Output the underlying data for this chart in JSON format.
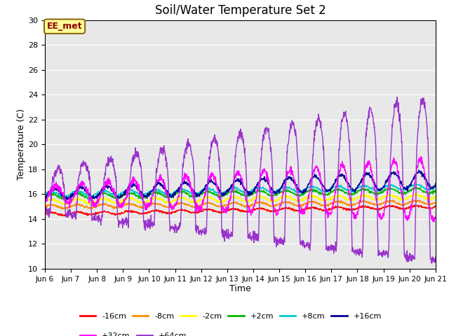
{
  "title": "Soil/Water Temperature Set 2",
  "xlabel": "Time",
  "ylabel": "Temperature (C)",
  "ylim": [
    10,
    30
  ],
  "xlim": [
    0,
    15
  ],
  "plot_bg_color": "#e8e8e8",
  "x_tick_labels": [
    "Jun 6",
    "Jun 7",
    "Jun 8",
    "Jun 9",
    "Jun 10",
    "Jun 11",
    "Jun 12",
    "Jun 13",
    "Jun 14",
    "Jun 15",
    "Jun 16",
    "Jun 17",
    "Jun 18",
    "Jun 19",
    "Jun 20",
    "Jun 21"
  ],
  "annotation_text": "EE_met",
  "annotation_color": "#8B0000",
  "annotation_bg": "#FFFF99",
  "annotation_edge": "#8B6914",
  "series": {
    "-16cm": {
      "color": "#FF0000"
    },
    "-8cm": {
      "color": "#FF8C00"
    },
    "-2cm": {
      "color": "#FFFF00"
    },
    "+2cm": {
      "color": "#00BB00"
    },
    "+8cm": {
      "color": "#00CCCC"
    },
    "+16cm": {
      "color": "#000099"
    },
    "+32cm": {
      "color": "#FF00FF"
    },
    "+64cm": {
      "color": "#9933CC"
    }
  },
  "legend_order": [
    "-16cm",
    "-8cm",
    "-2cm",
    "+2cm",
    "+8cm",
    "+16cm",
    "+32cm",
    "+64cm"
  ],
  "legend_row1": [
    "-16cm",
    "-8cm",
    "-2cm",
    "+2cm",
    "+8cm",
    "+16cm"
  ],
  "legend_row2": [
    "+32cm",
    "+64cm"
  ]
}
